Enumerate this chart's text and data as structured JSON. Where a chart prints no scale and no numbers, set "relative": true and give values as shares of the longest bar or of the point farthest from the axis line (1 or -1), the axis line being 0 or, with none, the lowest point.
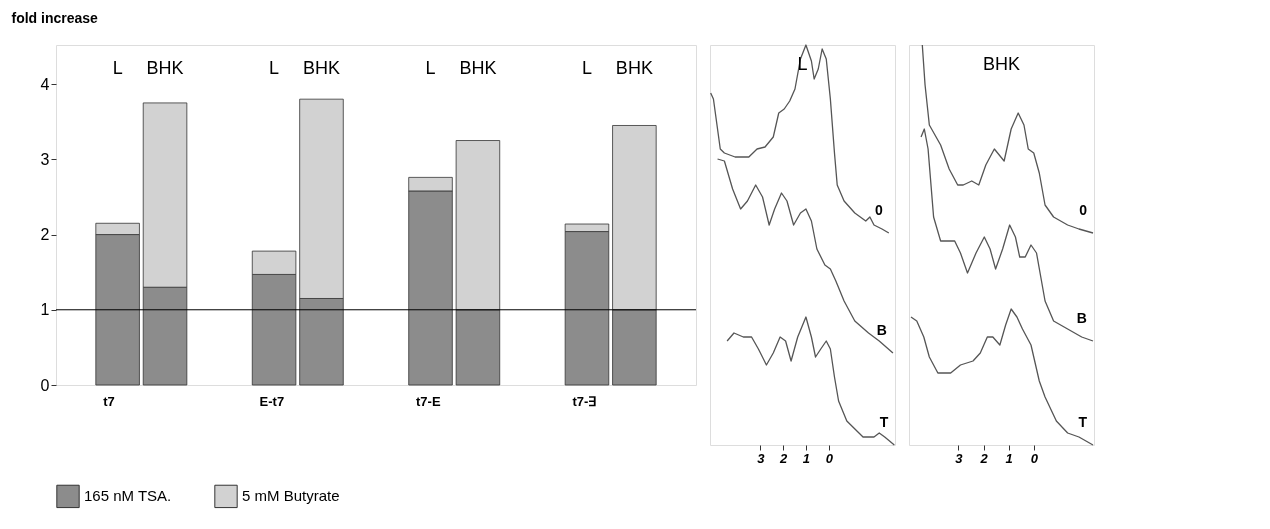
{
  "chart_data": [
    {
      "type": "bar",
      "stacked": true,
      "ylabel": "fold increase",
      "categories": [
        "t7",
        null,
        "E-t7",
        null,
        "t7-E",
        null,
        "t7-∃",
        null
      ],
      "series": [
        {
          "name": "165 nM TSA.",
          "color": "#8c8c8c",
          "values": [
            2.0,
            1.3,
            1.47,
            1.15,
            2.58,
            1.0,
            2.04,
            1.0
          ]
        },
        {
          "name": "5 mM Butyrate",
          "color": "#d2d2d2",
          "values": [
            0.15,
            2.45,
            0.31,
            2.65,
            0.18,
            2.25,
            0.1,
            2.45
          ]
        }
      ],
      "ylim": [
        0,
        4.52
      ],
      "yticks": [
        0,
        1,
        2,
        3,
        4
      ],
      "ref_lines": [
        {
          "axis": "y",
          "value": 1,
          "color": "#000000"
        }
      ],
      "annotations": [
        "L",
        "BHK",
        "L",
        "BHK",
        "L",
        "BHK",
        "L",
        "BHK"
      ],
      "legend": "bottom",
      "grid": false
    },
    {
      "type": "line",
      "title": "L",
      "relative": true,
      "xlim": [
        5.2,
        -2.9
      ],
      "xticks": [
        3,
        2,
        1,
        0
      ],
      "grid": false,
      "series": [
        {
          "name": "0",
          "color": "#555555",
          "x": [
            5.17,
            5.05,
            4.75,
            4.57,
            4.1,
            3.5,
            3.14,
            2.79,
            2.43,
            2.19,
            1.95,
            1.71,
            1.48,
            1.24,
            1.0,
            0.76,
            0.64,
            0.46,
            0.29,
            0.11,
            -0.07,
            -0.25,
            -0.37,
            -0.67,
            -1.14,
            -1.62,
            -1.8,
            -1.98,
            -2.33,
            -2.63
          ],
          "values": [
            0.88,
            0.865,
            0.74,
            0.73,
            0.72,
            0.72,
            0.74,
            0.745,
            0.77,
            0.83,
            0.84,
            0.86,
            0.89,
            0.965,
            1.0,
            0.96,
            0.915,
            0.94,
            0.99,
            0.965,
            0.865,
            0.73,
            0.65,
            0.61,
            0.58,
            0.56,
            0.57,
            0.55,
            0.54,
            0.53
          ]
        },
        {
          "name": "B",
          "color": "#555555",
          "x": [
            4.87,
            4.57,
            4.21,
            3.86,
            3.56,
            3.2,
            2.9,
            2.61,
            2.37,
            2.07,
            1.83,
            1.54,
            1.24,
            1.0,
            0.76,
            0.52,
            0.17,
            -0.07,
            -0.31,
            -0.67,
            -1.14,
            -1.74,
            -2.21,
            -2.81
          ],
          "values": [
            0.715,
            0.71,
            0.64,
            0.59,
            0.61,
            0.65,
            0.62,
            0.55,
            0.59,
            0.63,
            0.61,
            0.55,
            0.58,
            0.59,
            0.56,
            0.49,
            0.45,
            0.44,
            0.41,
            0.36,
            0.31,
            0.28,
            0.26,
            0.23
          ]
        },
        {
          "name": "T",
          "color": "#555555",
          "x": [
            4.45,
            4.15,
            3.74,
            3.38,
            3.08,
            2.73,
            2.43,
            2.13,
            1.89,
            1.65,
            1.36,
            1.0,
            0.76,
            0.58,
            0.35,
            0.11,
            -0.07,
            -0.25,
            -0.43,
            -0.79,
            -1.5,
            -1.98,
            -2.21,
            -2.45,
            -2.87
          ],
          "values": [
            0.26,
            0.28,
            0.27,
            0.27,
            0.24,
            0.2,
            0.23,
            0.27,
            0.26,
            0.21,
            0.27,
            0.32,
            0.27,
            0.22,
            0.24,
            0.26,
            0.24,
            0.17,
            0.11,
            0.06,
            0.02,
            0.02,
            0.03,
            0.02,
            0.0
          ]
        }
      ]
    },
    {
      "type": "line",
      "title": "BHK",
      "relative": true,
      "xlim": [
        4.97,
        -2.4
      ],
      "xticks": [
        3,
        2,
        1,
        0
      ],
      "grid": false,
      "series": [
        {
          "name": "0",
          "color": "#555555",
          "x": [
            4.44,
            4.33,
            4.16,
            3.71,
            3.37,
            3.03,
            2.81,
            2.47,
            2.19,
            1.91,
            1.57,
            1.18,
            0.9,
            0.62,
            0.39,
            0.22,
            0.0,
            -0.22,
            -0.45,
            -0.79,
            -1.35,
            -1.8,
            -2.36
          ],
          "values": [
            1.0,
            0.9,
            0.8,
            0.75,
            0.69,
            0.65,
            0.65,
            0.66,
            0.65,
            0.7,
            0.74,
            0.71,
            0.79,
            0.83,
            0.8,
            0.74,
            0.73,
            0.68,
            0.6,
            0.57,
            0.55,
            0.54,
            0.53
          ]
        },
        {
          "name": "B",
          "color": "#555555",
          "x": [
            4.49,
            4.36,
            4.21,
            3.99,
            3.71,
            3.43,
            3.15,
            2.92,
            2.64,
            2.3,
            1.97,
            1.74,
            1.52,
            1.24,
            0.96,
            0.73,
            0.56,
            0.34,
            0.11,
            -0.11,
            -0.28,
            -0.45,
            -0.79,
            -1.35,
            -1.91,
            -2.36
          ],
          "values": [
            0.77,
            0.79,
            0.74,
            0.57,
            0.51,
            0.51,
            0.51,
            0.48,
            0.43,
            0.48,
            0.52,
            0.49,
            0.44,
            0.49,
            0.55,
            0.52,
            0.47,
            0.47,
            0.5,
            0.48,
            0.42,
            0.36,
            0.31,
            0.29,
            0.27,
            0.26
          ]
        },
        {
          "name": "T",
          "color": "#555555",
          "x": [
            4.89,
            4.66,
            4.38,
            4.16,
            3.82,
            3.31,
            2.92,
            2.42,
            2.13,
            1.85,
            1.63,
            1.35,
            1.12,
            0.9,
            0.67,
            0.45,
            0.11,
            -0.22,
            -0.45,
            -0.9,
            -1.35,
            -1.8,
            -2.36
          ],
          "values": [
            0.32,
            0.31,
            0.27,
            0.22,
            0.18,
            0.18,
            0.2,
            0.21,
            0.23,
            0.27,
            0.27,
            0.25,
            0.3,
            0.34,
            0.32,
            0.29,
            0.25,
            0.16,
            0.12,
            0.06,
            0.03,
            0.02,
            0.0
          ]
        }
      ]
    }
  ]
}
